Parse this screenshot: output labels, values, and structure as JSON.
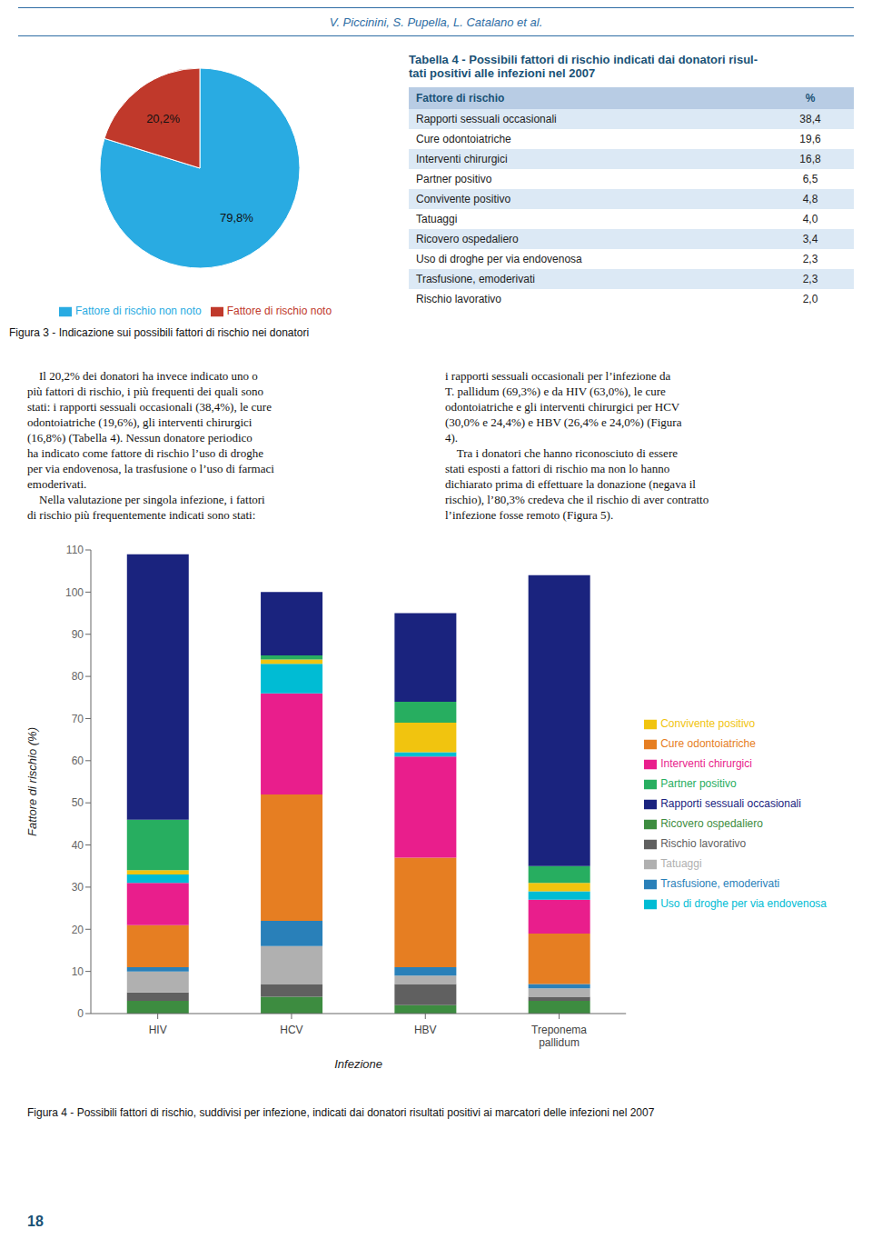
{
  "annotations": [
    "V. Piccinini, S. Pupella, L. Catalano et al.",
    "    Il 20,2% dei donatori ha invece indicato uno o\npiù fattori di rischio, i più frequenti dei quali sono\nstati: i rapporti sessuali occasionali (38,4%), le cure\nodontoiatriche (19,6%), gli interventi chirurgici\n(16,8%) (Tabella 4). Nessun donatore periodico\nha indicato come fattore di rischio l’uso di droghe\nper via endovenosa, la trasfusione o l’uso di farmaci\nemoderivati.\n    Nella valutazione per singola infezione, i fattori\ndi rischio più frequentemente indicati sono stati:",
    "i rapporti sessuali occasionali per l’infezione da\nT. pallidum (69,3%) e da HIV (63,0%), le cure\nodontoiatriche e gli interventi chirurgici per HCV\n(30,0% e 24,4%) e HBV (26,4% e 24,0%) (Figura\n4).\n    Tra i donatori che hanno riconosciuto di essere\nstati esposti a fattori di rischio ma non lo hanno\ndichiarato prima di effettuare la donazione (negava il\nrischio), l’80,3% credeva che il rischio di aver contratto\nl’infezione fosse remoto (Figura 5).",
    "18"
  ],
  "chart_data": [
    {
      "type": "pie",
      "title": "Figura 3 - Indicazione sui possibili fattori di rischio nei donatori",
      "categories": [
        "Fattore di rischio non noto",
        "Fattore di rischio noto"
      ],
      "values": [
        79.8,
        20.2
      ],
      "value_labels": [
        "79,8%",
        "20,2%"
      ],
      "colors": [
        "#29abe2",
        "#c0392b"
      ],
      "data_labels": true,
      "legend": "bottom"
    },
    {
      "type": "table",
      "title": "Tabella 4 - Possibili fattori di rischio indicati dai donatori risul-\ntati positivi alle infezioni nel 2007",
      "xlabel": "Fattore di rischio",
      "ylabel": "%",
      "categories": [
        "Rapporti sessuali occasionali",
        "Cure odontoiatriche",
        "Interventi chirurgici",
        "Partner positivo",
        "Convivente positivo",
        "Tatuaggi",
        "Ricovero ospedaliero",
        "Uso di droghe per via endovenosa",
        "Trasfusione, emoderivati",
        "Rischio lavorativo"
      ],
      "values": [
        38.4,
        19.6,
        16.8,
        6.5,
        4.8,
        4.0,
        3.4,
        2.3,
        2.3,
        2.0
      ],
      "value_labels": [
        "38,4",
        "19,6",
        "16,8",
        "6,5",
        "4,8",
        "4,0",
        "3,4",
        "2,3",
        "2,3",
        "2,0"
      ]
    },
    {
      "type": "bar",
      "title": "Figura 4 - Possibili fattori di rischio, suddivisi per infezione, indicati dai donatori risultati positivi ai marcatori delle infezioni nel 2007",
      "stacked": true,
      "grid": false,
      "legend": "right",
      "xlabel": "Infezione",
      "ylabel": "Fattore di rischio (%)",
      "categories": [
        "HIV",
        "HCV",
        "HBV",
        "Treponema\npallidum"
      ],
      "ylim": [
        0,
        110
      ],
      "yticks": [
        0,
        10,
        20,
        30,
        40,
        50,
        60,
        70,
        80,
        90,
        100,
        110
      ],
      "series": [
        {
          "name": "Ricovero ospedaliero",
          "color": "#3d8c40",
          "values": [
            3.0,
            4.0,
            2.0,
            3.0
          ]
        },
        {
          "name": "Rischio lavorativo",
          "color": "#606060",
          "values": [
            2.0,
            3.0,
            5.0,
            1.0
          ]
        },
        {
          "name": "Tatuaggi",
          "color": "#b0b0b0",
          "values": [
            5.0,
            9.0,
            2.0,
            2.0
          ]
        },
        {
          "name": "Trasfusione, emoderivati",
          "color": "#2980b9",
          "values": [
            1.0,
            6.0,
            2.0,
            1.0
          ]
        },
        {
          "name": "Cure odontoiatriche",
          "color": "#e67e22",
          "values": [
            10.0,
            30.0,
            26.0,
            12.0
          ]
        },
        {
          "name": "Interventi chirurgici",
          "color": "#e91e8c",
          "values": [
            10.0,
            24.0,
            24.0,
            8.0
          ]
        },
        {
          "name": "Uso di droghe per via endovenosa",
          "color": "#00bcd4",
          "values": [
            2.0,
            7.0,
            1.0,
            2.0
          ]
        },
        {
          "name": "Convivente positivo",
          "color": "#f1c40f",
          "values": [
            1.0,
            1.0,
            7.0,
            2.0
          ]
        },
        {
          "name": "Partner positivo",
          "color": "#27ae60",
          "values": [
            12.0,
            1.0,
            5.0,
            4.0
          ]
        },
        {
          "name": "Rapporti sessuali occasionali",
          "color": "#1a237e",
          "values": [
            63.0,
            15.0,
            21.0,
            69.0
          ]
        }
      ]
    }
  ]
}
